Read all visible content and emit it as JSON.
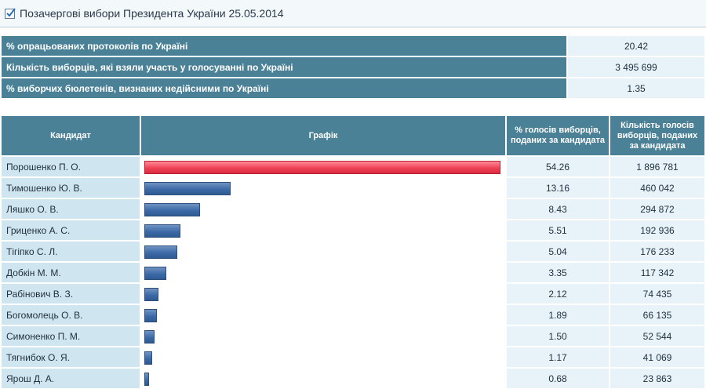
{
  "title": "Позачергові вибори Президента України 25.05.2014",
  "summary": [
    {
      "label": "% опрацьованих протоколів по Україні",
      "value": "20.42"
    },
    {
      "label": "Кількість виборців, які взяли участь у голосуванні по Україні",
      "value": "3 495 699"
    },
    {
      "label": "% виборчих бюлетенів, визнаних недійсними по Україні",
      "value": "1.35"
    }
  ],
  "table": {
    "headers": {
      "candidate": "Кандидат",
      "graph": "Графік",
      "percent": "% голосів виборців, поданих за кандидата",
      "votes": "Кількість голосів виборців, поданих за кандидата"
    },
    "rows": [
      {
        "name": "Порошенко П. О.",
        "percent": "54.26",
        "votes": "1 896 781"
      },
      {
        "name": "Тимошенко Ю. В.",
        "percent": "13.16",
        "votes": "460 042"
      },
      {
        "name": "Ляшко О. В.",
        "percent": "8.43",
        "votes": "294 872"
      },
      {
        "name": "Гриценко А. С.",
        "percent": "5.51",
        "votes": "192 936"
      },
      {
        "name": "Тігіпко С. Л.",
        "percent": "5.04",
        "votes": "176 233"
      },
      {
        "name": "Добкін М. М.",
        "percent": "3.35",
        "votes": "117 342"
      },
      {
        "name": "Рабінович В. З.",
        "percent": "2.12",
        "votes": "74 435"
      },
      {
        "name": "Богомолець О. В.",
        "percent": "1.89",
        "votes": "66 135"
      },
      {
        "name": "Симоненко П. М.",
        "percent": "1.50",
        "votes": "52 544"
      },
      {
        "name": "Тягнибок О. Я.",
        "percent": "1.17",
        "votes": "41 069"
      },
      {
        "name": "Ярош Д. А.",
        "percent": "0.68",
        "votes": "23 863"
      }
    ]
  },
  "colors": {
    "header_bg": "#4b8197",
    "leading_bar": "#ef4256",
    "other_bar": "#3d6aa6"
  }
}
